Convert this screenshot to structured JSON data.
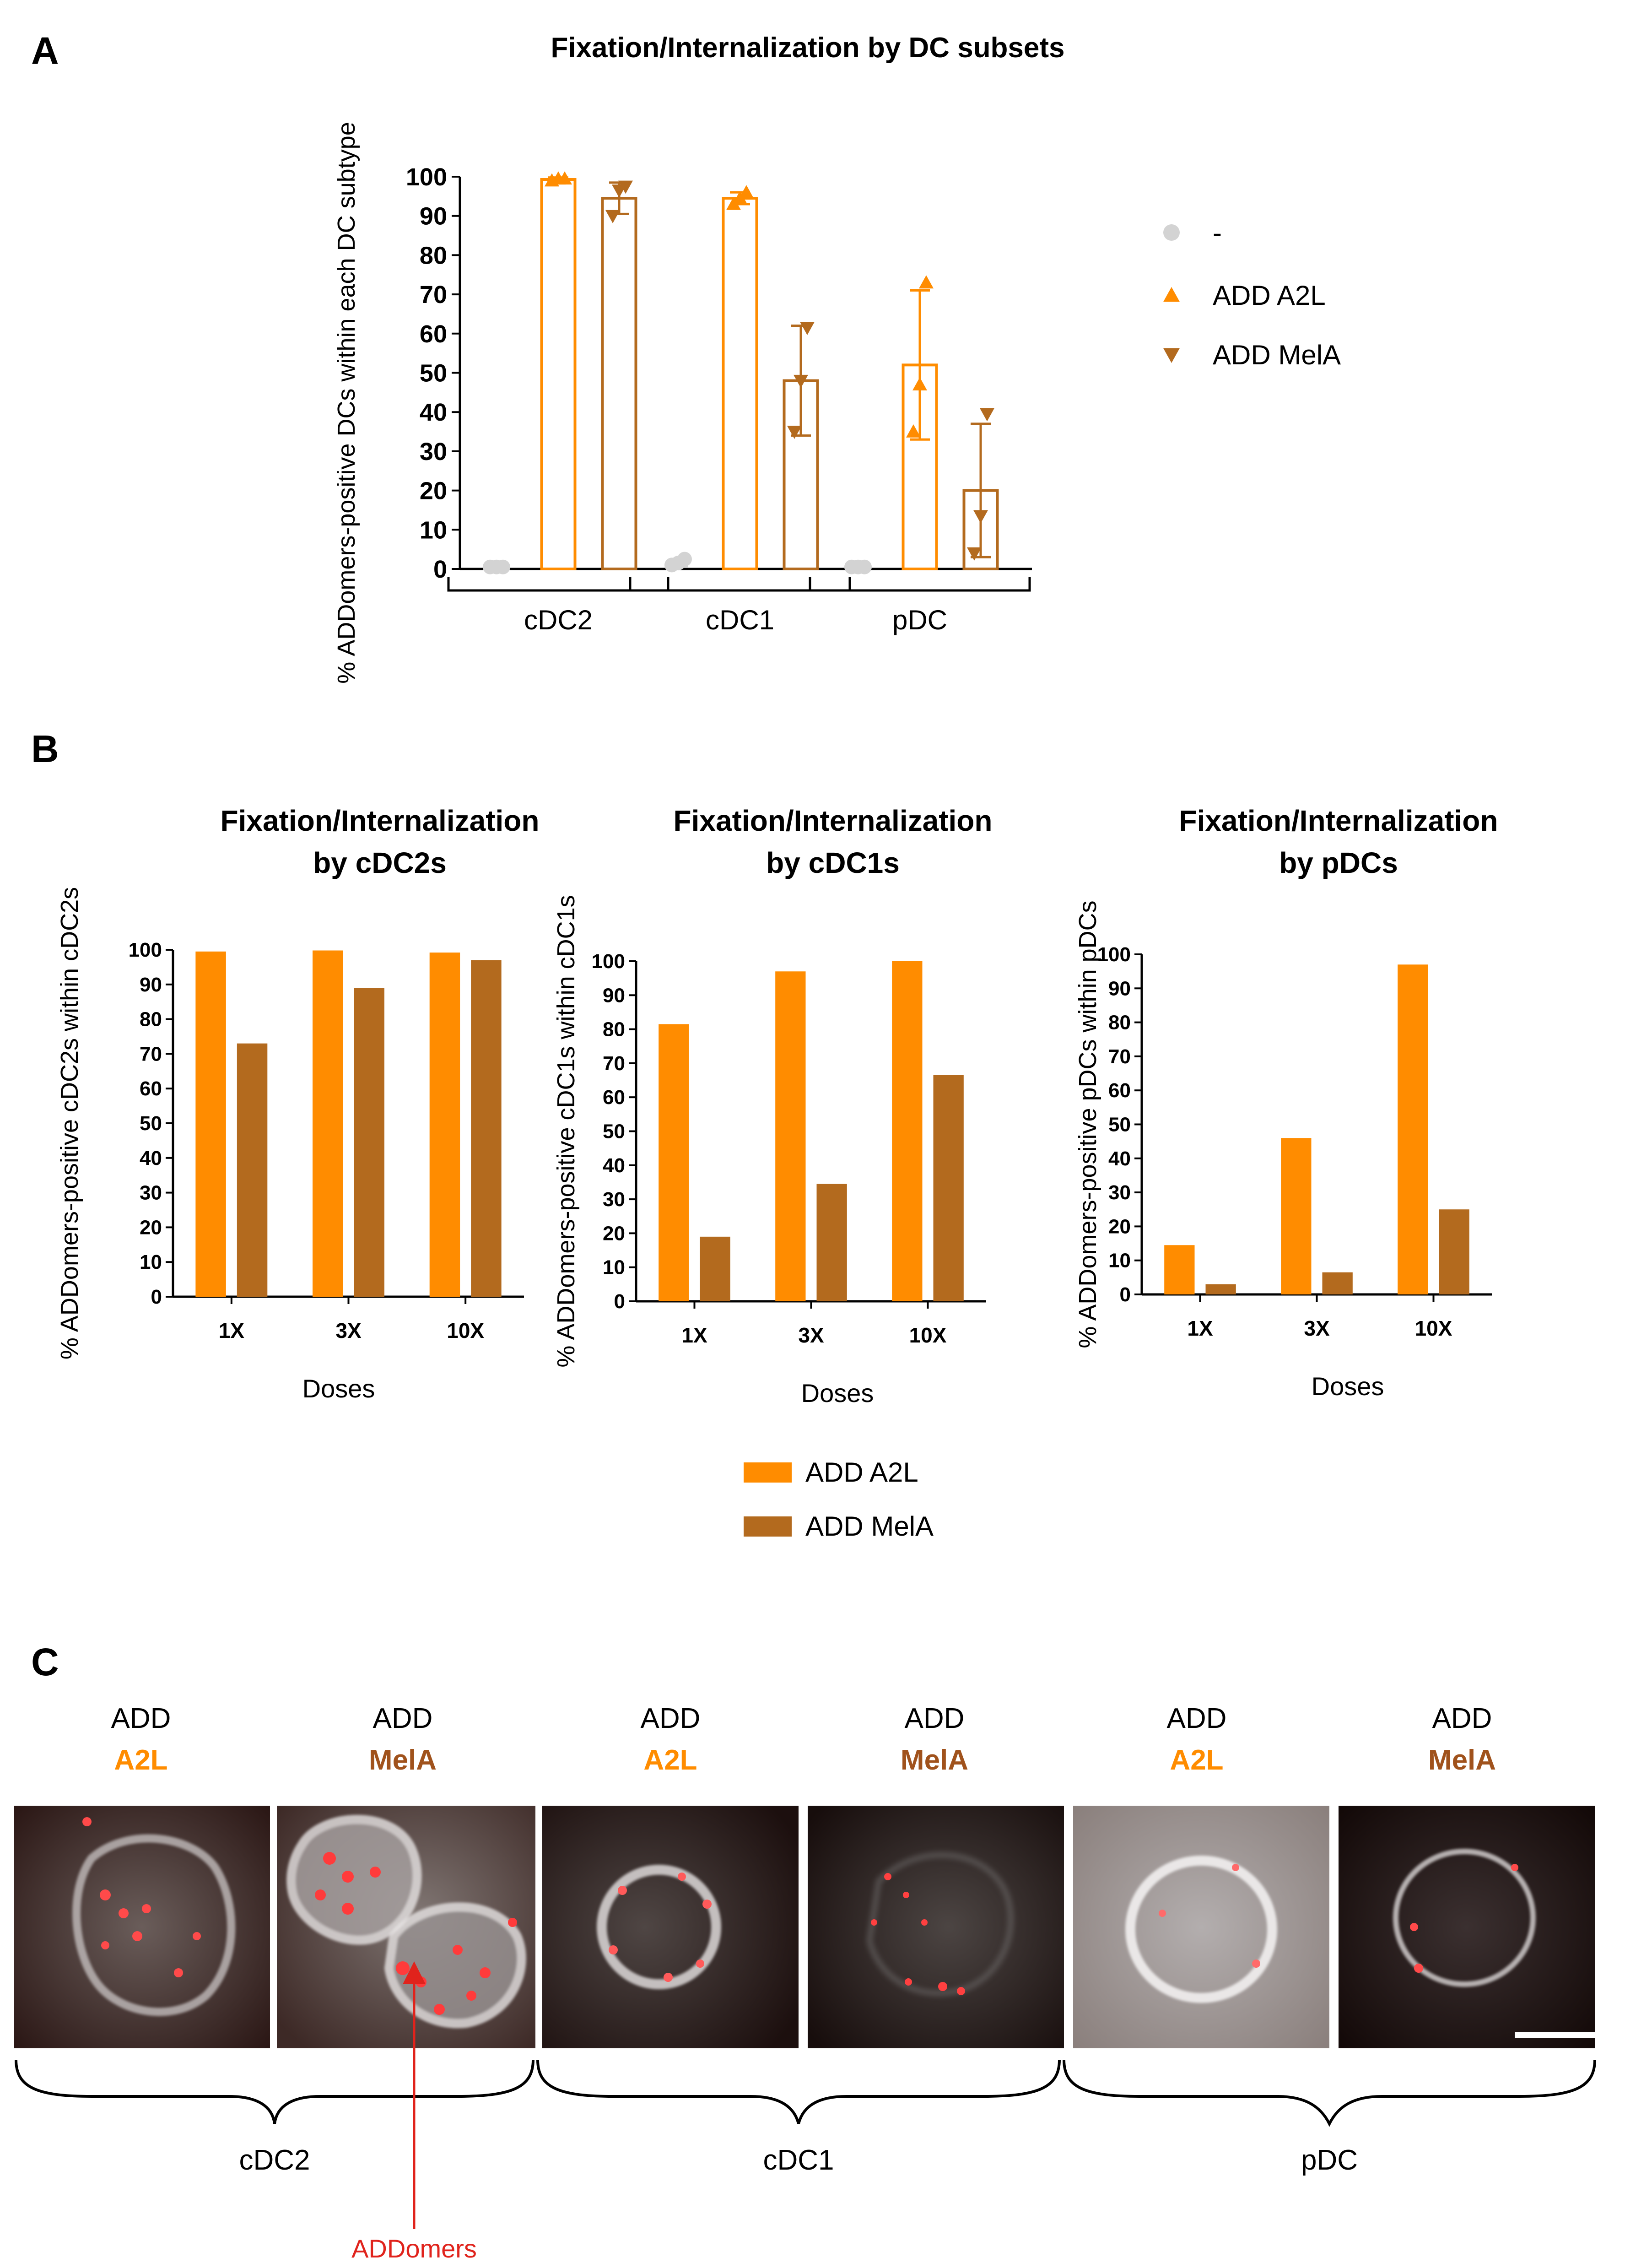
{
  "colors": {
    "a2l": "#FF8C00",
    "mela": "#B36A1E",
    "ctrl": "#D3D3D3",
    "axis": "#000000",
    "annot": "#E0231C"
  },
  "panel_a": {
    "letter": "A"
  },
  "panel_b": {
    "letter": "B"
  },
  "panel_c": {
    "letter": "C",
    "labels": [
      {
        "top": "ADD",
        "bottom": "A2L"
      },
      {
        "top": "ADD",
        "bottom": "MelA"
      },
      {
        "top": "ADD",
        "bottom": "A2L"
      },
      {
        "top": "ADD",
        "bottom": "MelA"
      },
      {
        "top": "ADD",
        "bottom": "A2L"
      },
      {
        "top": "ADD",
        "bottom": "MelA"
      }
    ],
    "groups": [
      "cDC2",
      "cDC1",
      "pDC"
    ],
    "arrow_label": "ADDomers"
  },
  "chart_data": [
    {
      "type": "bar",
      "title": "Fixation/Internalization by DC subsets",
      "ylabel": "% ADDomers-positive DCs within each DC subtype",
      "xlabel": "",
      "ylim": [
        0,
        100
      ],
      "yticks": [
        0,
        10,
        20,
        30,
        40,
        50,
        60,
        70,
        80,
        90,
        100
      ],
      "categories": [
        "cDC2",
        "cDC1",
        "pDC"
      ],
      "series": [
        {
          "name": "-",
          "marker": "circle",
          "means": [
            0.5,
            1.5,
            0.5
          ],
          "sd": [
            0,
            0.8,
            0
          ],
          "points": [
            [
              0.5,
              0.5,
              0.5
            ],
            [
              1,
              1.5,
              2.5
            ],
            [
              0.5,
              0.5,
              0.5
            ]
          ]
        },
        {
          "name": "ADD A2L",
          "marker": "triangle-up",
          "means": [
            99.3,
            94.5,
            52
          ],
          "sd": [
            0.5,
            1.5,
            19
          ],
          "points": [
            [
              99,
              99.5,
              99.5
            ],
            [
              93,
              94.5,
              96
            ],
            [
              35,
              47,
              73
            ]
          ]
        },
        {
          "name": "ADD MelA",
          "marker": "triangle-down",
          "means": [
            94.5,
            48,
            20
          ],
          "sd": [
            4,
            14,
            17
          ],
          "points": [
            [
              90,
              96.5,
              97.5
            ],
            [
              35,
              48,
              61.5
            ],
            [
              4,
              13.5,
              39.5
            ]
          ]
        }
      ]
    },
    {
      "type": "bar",
      "title": "Fixation/Internalization by cDC2s",
      "ylabel": "% ADDomers-positive cDC2s within cDC2s",
      "xlabel": "Doses",
      "ylim": [
        0,
        100
      ],
      "yticks": [
        0,
        10,
        20,
        30,
        40,
        50,
        60,
        70,
        80,
        90,
        100
      ],
      "categories": [
        "1X",
        "3X",
        "10X"
      ],
      "series": [
        {
          "name": "ADD A2L",
          "values": [
            99.5,
            99.8,
            99.2
          ]
        },
        {
          "name": "ADD MelA",
          "values": [
            73,
            89,
            97
          ]
        }
      ]
    },
    {
      "type": "bar",
      "title": "Fixation/Internalization by cDC1s",
      "ylabel": "% ADDomers-positive cDC1s within cDC1s",
      "xlabel": "Doses",
      "ylim": [
        0,
        100
      ],
      "yticks": [
        0,
        10,
        20,
        30,
        40,
        50,
        60,
        70,
        80,
        90,
        100
      ],
      "categories": [
        "1X",
        "3X",
        "10X"
      ],
      "series": [
        {
          "name": "ADD A2L",
          "values": [
            81.5,
            97,
            100
          ]
        },
        {
          "name": "ADD MelA",
          "values": [
            19,
            34.5,
            66.5
          ]
        }
      ]
    },
    {
      "type": "bar",
      "title": "Fixation/Internalization by pDCs",
      "ylabel": "% ADDomers-positive pDCs within pDCs",
      "xlabel": "Doses",
      "ylim": [
        0,
        100
      ],
      "yticks": [
        0,
        10,
        20,
        30,
        40,
        50,
        60,
        70,
        80,
        90,
        100
      ],
      "categories": [
        "1X",
        "3X",
        "10X"
      ],
      "series": [
        {
          "name": "ADD A2L",
          "values": [
            14.5,
            46,
            97
          ]
        },
        {
          "name": "ADD MelA",
          "values": [
            3,
            6.5,
            25
          ]
        }
      ]
    }
  ],
  "legend_b": [
    "ADD A2L",
    "ADD MelA"
  ]
}
